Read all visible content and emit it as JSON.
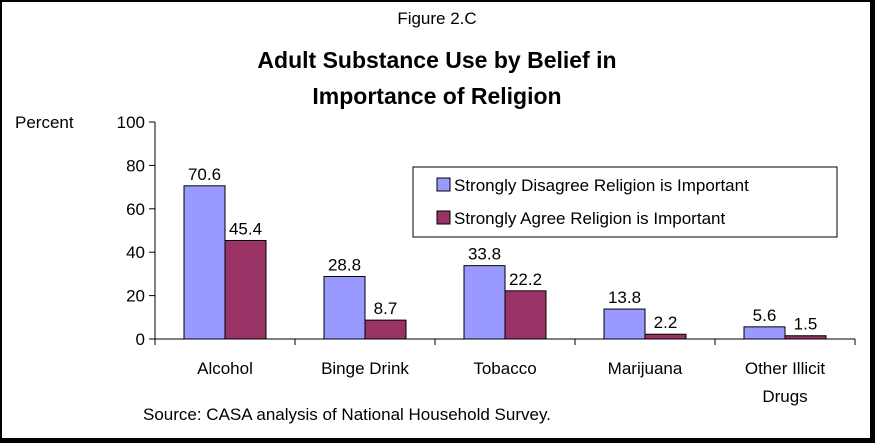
{
  "figure_label": "Figure 2.C",
  "source_note": "Source:  CASA analysis of National Household Survey.",
  "chart_data": {
    "type": "bar",
    "title_line1": "Adult Substance Use by Belief in",
    "title_line2": "Importance of Religion",
    "ylabel": "Percent",
    "ylim": [
      0,
      100
    ],
    "yticks": [
      "0",
      "20",
      "40",
      "60",
      "80",
      "100"
    ],
    "categories": [
      {
        "line1": "Alcohol",
        "line2": ""
      },
      {
        "line1": "Binge Drink",
        "line2": ""
      },
      {
        "line1": "Tobacco",
        "line2": ""
      },
      {
        "line1": "Marijuana",
        "line2": ""
      },
      {
        "line1": "Other Illicit",
        "line2": "Drugs"
      }
    ],
    "series": [
      {
        "name": "Strongly Disagree Religion is Important",
        "color": "#9999ff",
        "values": [
          70.6,
          28.8,
          33.8,
          13.8,
          5.6
        ],
        "labels": [
          "70.6",
          "28.8",
          "33.8",
          "13.8",
          "5.6"
        ]
      },
      {
        "name": "Strongly Agree Religion is Important",
        "color": "#993366",
        "values": [
          45.4,
          8.7,
          22.2,
          2.2,
          1.5
        ],
        "labels": [
          "45.4",
          "8.7",
          "22.2",
          "2.2",
          "1.5"
        ]
      }
    ],
    "grid": false,
    "legend_position": "top-right"
  }
}
